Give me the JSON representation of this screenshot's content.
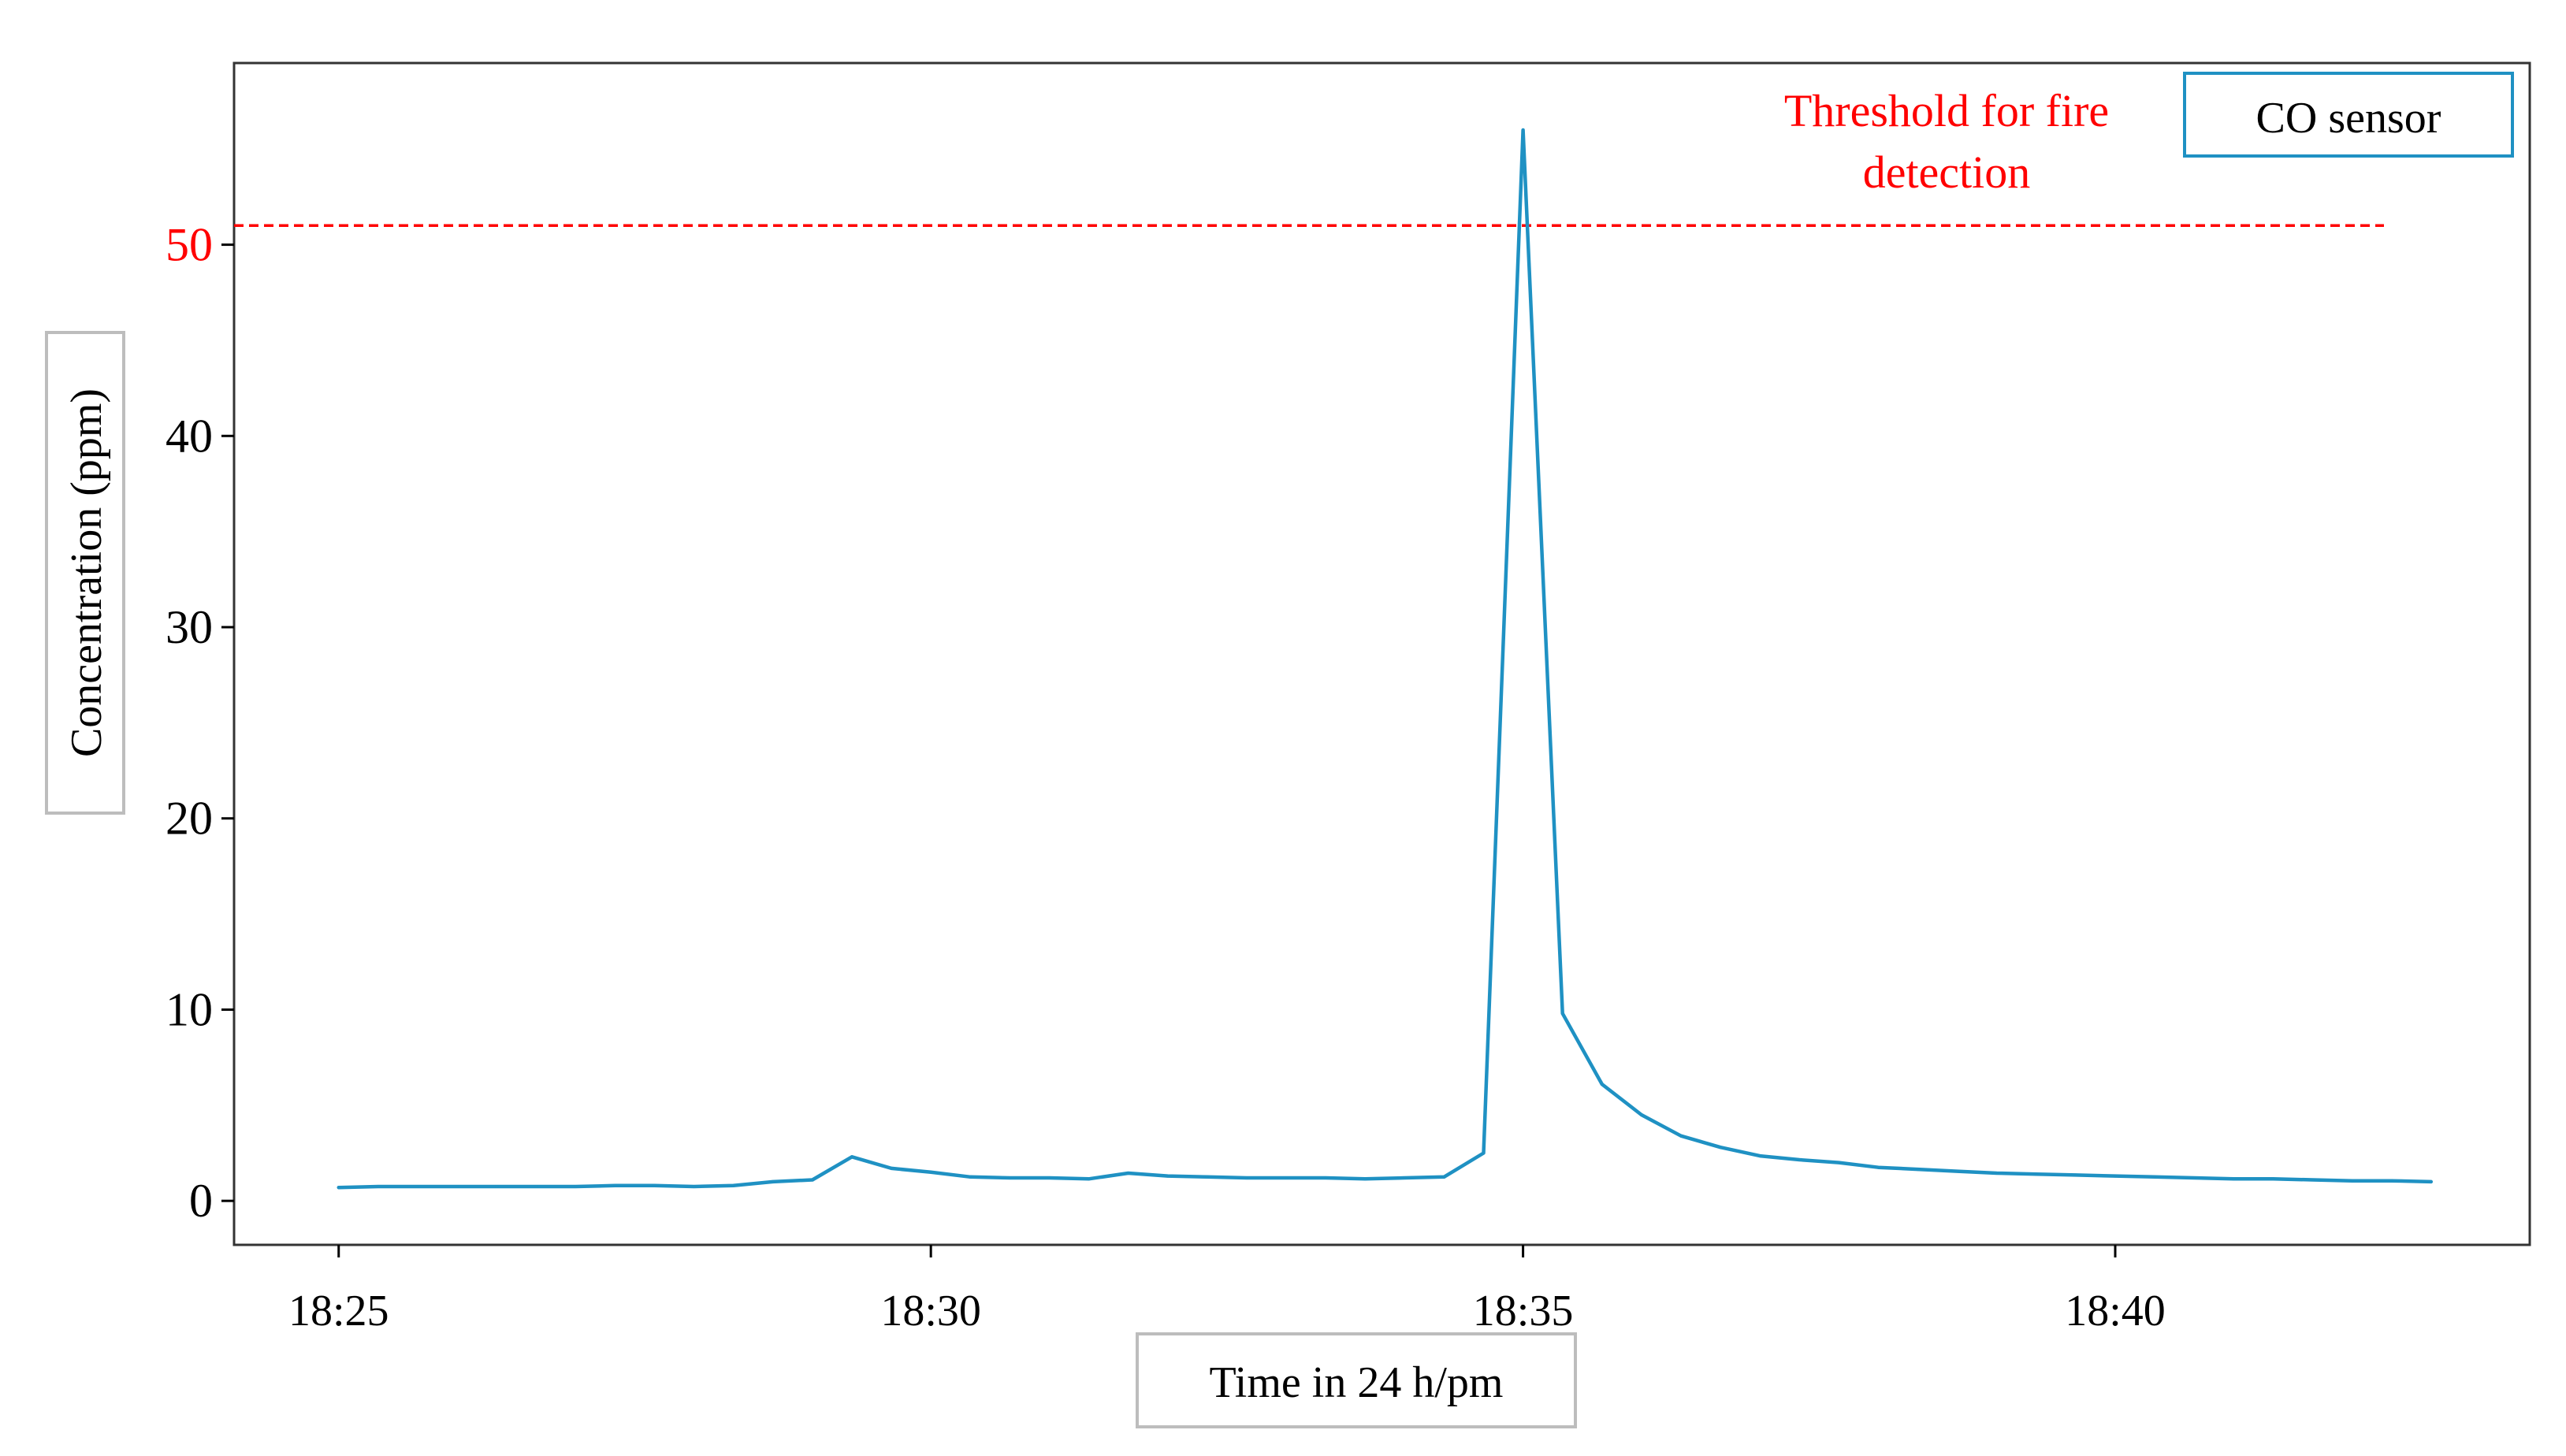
{
  "chart_data": {
    "type": "line",
    "xlabel": "Time in 24 h/pm",
    "ylabel": "Concentration (ppm)",
    "xlim": [
      "18:24:07",
      "18:43:30"
    ],
    "ylim": [
      -2.3,
      59.5
    ],
    "x_ticks": [
      "18:25",
      "18:30",
      "18:35",
      "18:40"
    ],
    "y_ticks": [
      0,
      10,
      20,
      30,
      40,
      50
    ],
    "grid": false,
    "legend": {
      "position": "top-right",
      "entries": [
        "CO sensor"
      ]
    },
    "colors": {
      "series": "#1f91c3",
      "threshold": "#ff0000",
      "axis": "#000000",
      "frame": "#333333",
      "label_box": "#bdbdbd"
    },
    "series": [
      {
        "name": "CO sensor",
        "x": [
          "18:25:00",
          "18:25:20",
          "18:25:40",
          "18:26:00",
          "18:26:20",
          "18:26:40",
          "18:27:00",
          "18:27:20",
          "18:27:40",
          "18:28:00",
          "18:28:20",
          "18:28:40",
          "18:29:00",
          "18:29:20",
          "18:29:40",
          "18:30:00",
          "18:30:20",
          "18:30:40",
          "18:31:00",
          "18:31:20",
          "18:31:40",
          "18:32:00",
          "18:32:20",
          "18:32:40",
          "18:33:00",
          "18:33:20",
          "18:33:40",
          "18:34:00",
          "18:34:20",
          "18:34:40",
          "18:35:00",
          "18:35:20",
          "18:35:40",
          "18:36:00",
          "18:36:20",
          "18:36:40",
          "18:37:00",
          "18:37:20",
          "18:37:40",
          "18:38:00",
          "18:38:20",
          "18:38:40",
          "18:39:00",
          "18:39:20",
          "18:39:40",
          "18:40:00",
          "18:40:20",
          "18:40:40",
          "18:41:00",
          "18:41:20",
          "18:41:40",
          "18:42:00",
          "18:42:20",
          "18:42:40"
        ],
        "values": [
          0.7,
          0.75,
          0.75,
          0.75,
          0.75,
          0.75,
          0.75,
          0.8,
          0.8,
          0.75,
          0.8,
          1.0,
          1.1,
          2.3,
          1.7,
          1.5,
          1.25,
          1.2,
          1.2,
          1.15,
          1.45,
          1.3,
          1.25,
          1.2,
          1.2,
          1.2,
          1.15,
          1.2,
          1.25,
          2.5,
          56.0,
          9.8,
          6.1,
          4.5,
          3.4,
          2.8,
          2.35,
          2.15,
          2.0,
          1.75,
          1.65,
          1.55,
          1.45,
          1.4,
          1.35,
          1.3,
          1.25,
          1.2,
          1.15,
          1.15,
          1.1,
          1.05,
          1.05,
          1.0
        ]
      }
    ],
    "annotations": [
      {
        "type": "hline",
        "y": 51,
        "label": "Threshold for fire detection",
        "label_lines": [
          "Threshold for fire",
          "detection"
        ],
        "highlight_tick": "50"
      }
    ]
  }
}
